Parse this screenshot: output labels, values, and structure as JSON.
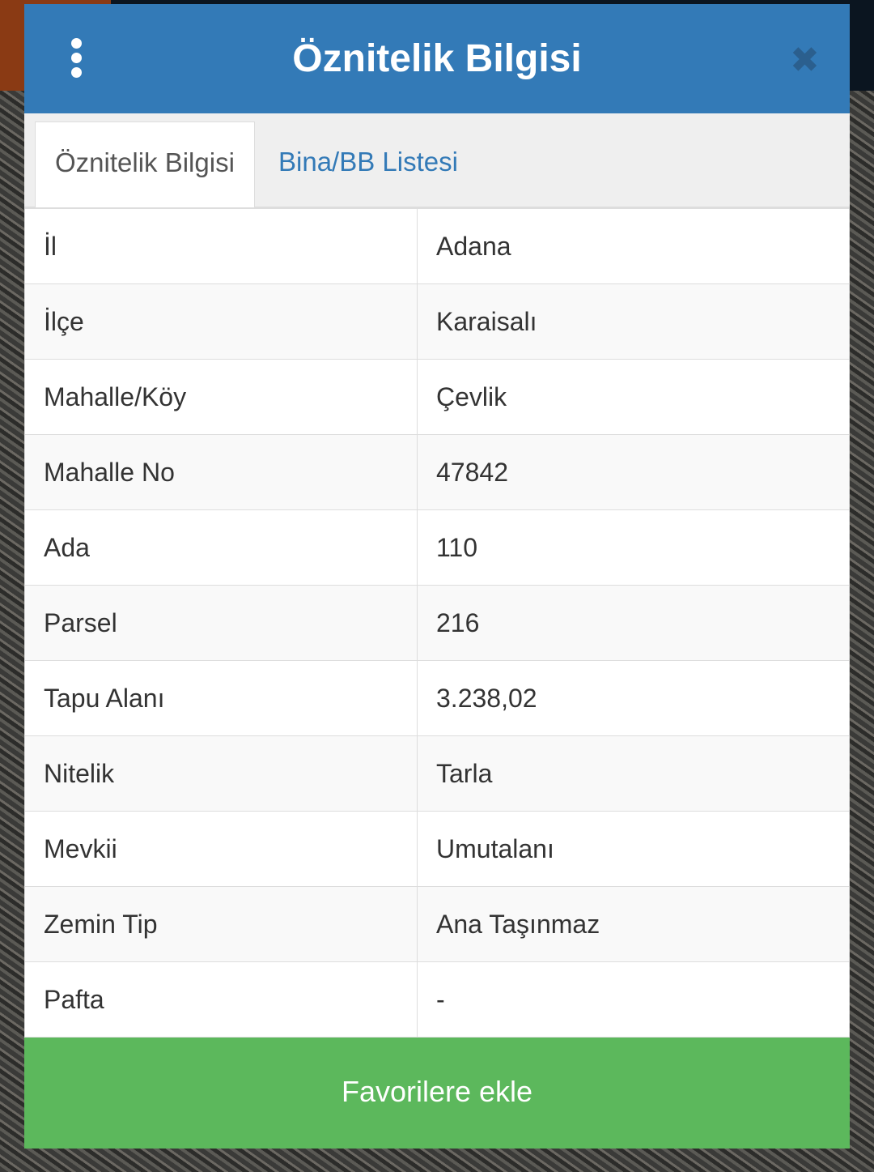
{
  "header": {
    "title": "Öznitelik Bilgisi",
    "menu_icon": "kebab-menu-icon",
    "close_icon": "close-icon"
  },
  "tabs": [
    {
      "label": "Öznitelik Bilgisi",
      "active": true
    },
    {
      "label": "Bina/BB Listesi",
      "active": false
    }
  ],
  "rows": [
    {
      "key": "İl",
      "value": "Adana"
    },
    {
      "key": "İlçe",
      "value": "Karaisalı"
    },
    {
      "key": "Mahalle/Köy",
      "value": "Çevlik"
    },
    {
      "key": "Mahalle No",
      "value": "47842"
    },
    {
      "key": "Ada",
      "value": "110"
    },
    {
      "key": "Parsel",
      "value": "216"
    },
    {
      "key": "Tapu Alanı",
      "value": "3.238,02"
    },
    {
      "key": "Nitelik",
      "value": "Tarla"
    },
    {
      "key": "Mevkii",
      "value": "Umutalanı"
    },
    {
      "key": "Zemin Tip",
      "value": "Ana Taşınmaz"
    },
    {
      "key": "Pafta",
      "value": "-"
    }
  ],
  "footer": {
    "button_label": "Favorilere ekle"
  },
  "colors": {
    "header": "#337ab7",
    "button": "#5cb85c",
    "tab_link": "#337ab7"
  }
}
